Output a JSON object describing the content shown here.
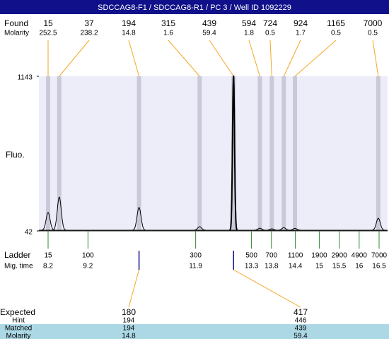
{
  "title": "SDCCAG8-F1 / SDCCAG8-R1 / PC 3 / Well ID 1092229",
  "found": {
    "label": "Found",
    "molarity_label": "Molarity",
    "peaks": [
      {
        "size": 15,
        "molarity": 252.5,
        "time": 8.2,
        "height": 168
      },
      {
        "size": 37,
        "molarity": 238.2,
        "time": 8.48,
        "height": 278
      },
      {
        "size": 194,
        "molarity": 14.8,
        "time": 10.48,
        "height": 204
      },
      {
        "size": 315,
        "molarity": 1.6,
        "time": 12.0,
        "height": 67
      },
      {
        "size": 439,
        "molarity": 59.4,
        "time": 12.85,
        "height": 1143
      },
      {
        "size": 594,
        "molarity": 1.8,
        "time": 13.51,
        "height": 56
      },
      {
        "size": 724,
        "molarity": 0.5,
        "time": 13.81,
        "height": 52
      },
      {
        "size": 924,
        "molarity": 1.7,
        "time": 14.11,
        "height": 60
      },
      {
        "size": 1165,
        "molarity": 0.5,
        "time": 14.39,
        "height": 55
      },
      {
        "size": 7000,
        "molarity": 0.5,
        "time": 16.48,
        "height": 127
      }
    ]
  },
  "fluo": {
    "label": "Fluo.",
    "ylim": [
      42,
      1143
    ],
    "yticks": [
      42,
      1143
    ]
  },
  "ladder": {
    "label": "Ladder",
    "time_label": "Mig. time",
    "sizes": [
      15,
      100,
      300,
      500,
      700,
      1100,
      1900,
      2900,
      4900,
      7000
    ],
    "times": [
      8.2,
      9.2,
      11.9,
      13.3,
      13.8,
      14.4,
      15,
      15.5,
      16,
      16.5
    ]
  },
  "expected": {
    "label": "Expected",
    "hint_label": "Hint",
    "matched_label": "Matched",
    "molarity_label": "Molarity",
    "items": [
      {
        "size": 180,
        "hint": 194,
        "matched": 194,
        "molarity": 14.8
      },
      {
        "size": 417,
        "hint": 446,
        "matched": 439,
        "molarity": 59.4
      }
    ]
  }
}
